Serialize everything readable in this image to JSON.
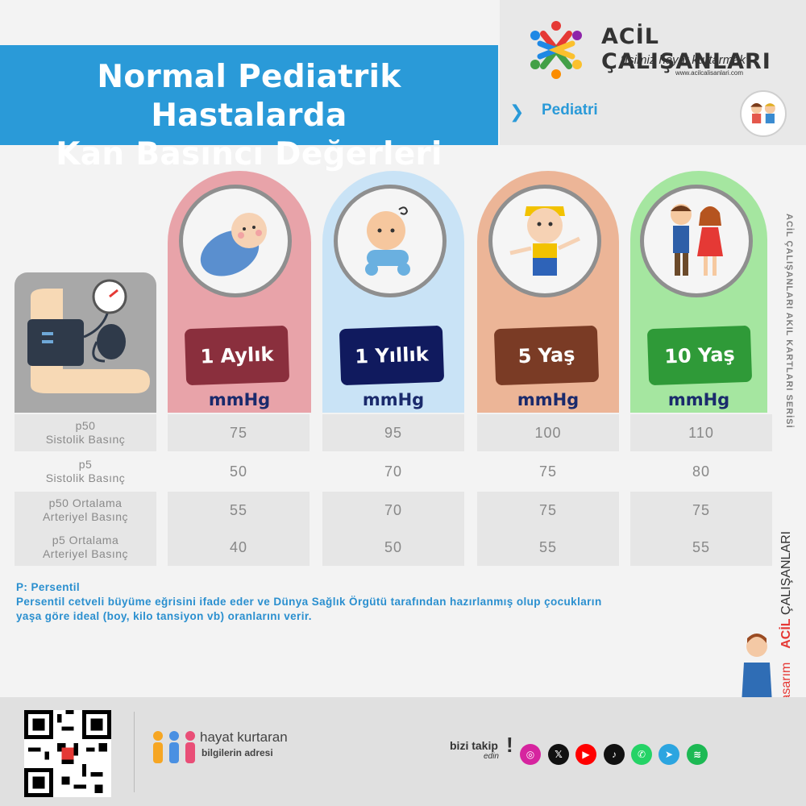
{
  "header": {
    "title_line1": "Normal Pediatrik Hastalarda",
    "title_line2": "Kan Basıncı Değerleri",
    "brand_name": "ACİL ÇALIŞANLARI",
    "slogan": "“İşimiz hayat kurtarmak”",
    "url": "www.acilcalisanlari.com",
    "category": "Pediatri"
  },
  "columns": [
    {
      "age": "1 Aylık",
      "unit": "mmHg",
      "bg": "#e8a3a9",
      "tag": "#8a2f3d"
    },
    {
      "age": "1 Yıllık",
      "unit": "mmHg",
      "bg": "#c9e3f6",
      "tag": "#101a5e"
    },
    {
      "age": "5 Yaş",
      "unit": "mmHg",
      "bg": "#ecb597",
      "tag": "#7a3b25"
    },
    {
      "age": "10 Yaş",
      "unit": "mmHg",
      "bg": "#a5e6a0",
      "tag": "#2f9a38"
    }
  ],
  "table": {
    "rows": [
      {
        "label1": "p50",
        "label2": "Sistolik Basınç",
        "values": [
          "75",
          "95",
          "100",
          "110"
        ]
      },
      {
        "label1": "p5",
        "label2": "Sistolik Basınç",
        "values": [
          "50",
          "70",
          "75",
          "80"
        ]
      },
      {
        "label1": "p50 Ortalama",
        "label2": "Arteriyel Basınç",
        "values": [
          "55",
          "70",
          "75",
          "75"
        ]
      },
      {
        "label1": "p5 Ortalama",
        "label2": "Arteriyel Basınç",
        "values": [
          "40",
          "50",
          "55",
          "55"
        ]
      }
    ]
  },
  "note": {
    "line1": "P: Persentil",
    "line2": "Persentil cetveli büyüme eğrisini ifade eder ve Dünya Sağlık Örgütü tarafından hazırlanmış olup çocukların",
    "line3": "yaşa göre ideal (boy, kilo tansiyon vb) oranlarını verir."
  },
  "side": {
    "series": "ACİL ÇALIŞANLARI AKIL KARTLARI SERİSİ",
    "design_prefix": "tasarım",
    "design_brand_a": "ACİL",
    "design_brand_b": "ÇALIŞANLARI"
  },
  "footer": {
    "hk_title": "hayat kurtaran",
    "hk_sub": "bilgilerin adresi",
    "follow": "bizi takip",
    "follow2": "edin",
    "social_icons": [
      "instagram-icon",
      "x-icon",
      "youtube-icon",
      "tiktok-icon",
      "whatsapp-icon",
      "telegram-icon",
      "spotify-icon"
    ]
  }
}
